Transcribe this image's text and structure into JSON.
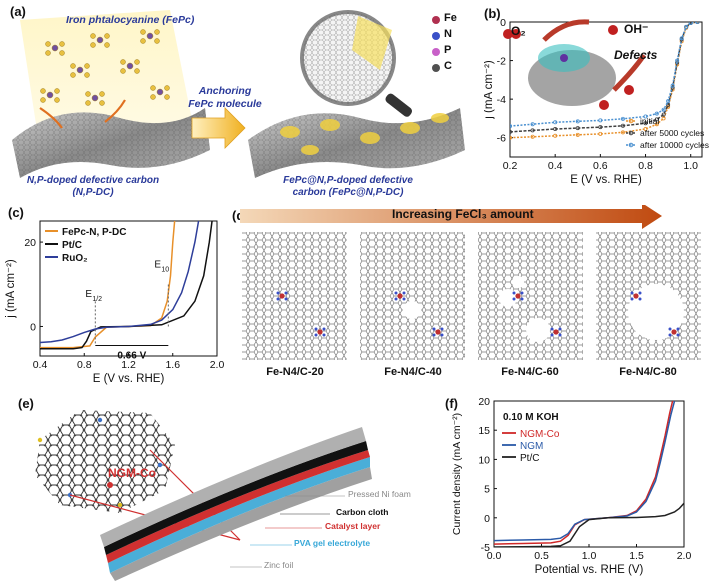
{
  "panel_labels": [
    "(a)",
    "(b)",
    "(c)",
    "(d)",
    "(e)",
    "(f)"
  ],
  "panel_a": {
    "fepc_label": "Iron phtalocyanine (FePc)",
    "anchoring_label": "Anchoring FePc molecule",
    "substrate_label": "N,P-doped defective carbon (N,P-DC)",
    "product_label": "FePc@N,P-doped defective carbon (FePc@N,P-DC)",
    "legend": [
      {
        "element": "Fe",
        "color": "#b03050"
      },
      {
        "element": "N",
        "color": "#3a50c8"
      },
      {
        "element": "P",
        "color": "#c860c8"
      },
      {
        "element": "C",
        "color": "#505050"
      }
    ]
  },
  "panel_b": {
    "inset_labels": {
      "o2": "O₂",
      "oh": "OH⁻",
      "defects": "Defects"
    },
    "chart_data": {
      "type": "line",
      "xlabel": "E (V vs. RHE)",
      "ylabel": "j (mA cm⁻²)",
      "xlim": [
        0.2,
        1.05
      ],
      "ylim": [
        -7,
        0
      ],
      "xticks": [
        0.2,
        0.4,
        0.6,
        0.8,
        1.0
      ],
      "yticks": [
        -6,
        -4,
        -2,
        0
      ],
      "legend_position": "bottom-right",
      "series": [
        {
          "name": "initial",
          "color": "#e8902a",
          "x": [
            0.2,
            0.3,
            0.4,
            0.5,
            0.6,
            0.7,
            0.8,
            0.85,
            0.88,
            0.9,
            0.92,
            0.94,
            0.96,
            0.98,
            1.0,
            1.03
          ],
          "y": [
            -6.0,
            -5.95,
            -5.9,
            -5.85,
            -5.8,
            -5.72,
            -5.55,
            -5.3,
            -5.0,
            -4.4,
            -3.5,
            -2.2,
            -1.0,
            -0.3,
            -0.05,
            0
          ]
        },
        {
          "name": "after 5000 cycles",
          "color": "#404040",
          "x": [
            0.2,
            0.3,
            0.4,
            0.5,
            0.6,
            0.7,
            0.8,
            0.85,
            0.88,
            0.9,
            0.92,
            0.94,
            0.96,
            0.98,
            1.0,
            1.03
          ],
          "y": [
            -5.7,
            -5.62,
            -5.55,
            -5.5,
            -5.45,
            -5.38,
            -5.25,
            -5.05,
            -4.8,
            -4.3,
            -3.4,
            -2.1,
            -0.9,
            -0.25,
            -0.05,
            0
          ]
        },
        {
          "name": "after 10000 cycles",
          "color": "#4a90d0",
          "x": [
            0.2,
            0.3,
            0.4,
            0.5,
            0.6,
            0.7,
            0.8,
            0.85,
            0.88,
            0.9,
            0.92,
            0.94,
            0.96,
            0.98,
            1.0,
            1.03
          ],
          "y": [
            -5.4,
            -5.3,
            -5.2,
            -5.15,
            -5.1,
            -5.02,
            -4.9,
            -4.75,
            -4.55,
            -4.1,
            -3.3,
            -2.0,
            -0.85,
            -0.25,
            -0.05,
            0
          ]
        }
      ]
    }
  },
  "panel_c": {
    "annotations": {
      "e_half": "E1/2",
      "e_10": "E10",
      "delta": "0.66 V"
    },
    "chart_data": {
      "type": "line",
      "xlabel": "E (V vs. RHE)",
      "ylabel": "j (mA cm⁻²)",
      "xlim": [
        0.4,
        2.0
      ],
      "ylim": [
        -7,
        25
      ],
      "xticks": [
        0.4,
        0.8,
        1.2,
        1.6,
        2.0
      ],
      "yticks": [
        0,
        20
      ],
      "legend_position": "top-left",
      "series": [
        {
          "name": "FePc-N, P-DC",
          "color": "#e8902a",
          "x": [
            0.4,
            0.7,
            0.85,
            0.9,
            1.0,
            1.2,
            1.4,
            1.5,
            1.55,
            1.58,
            1.6,
            1.62
          ],
          "y": [
            -5,
            -5,
            -4.6,
            -2.5,
            -0.2,
            0,
            0.2,
            2,
            6,
            12,
            20,
            26
          ]
        },
        {
          "name": "Pt/C",
          "color": "#111111",
          "x": [
            0.4,
            0.7,
            0.78,
            0.82,
            0.86,
            0.95,
            1.2,
            1.5,
            1.7,
            1.8,
            1.88,
            1.93,
            1.96
          ],
          "y": [
            -5.3,
            -5.3,
            -5.0,
            -3.5,
            -1.2,
            -0.1,
            0,
            0.4,
            2.5,
            6,
            12,
            20,
            26
          ]
        },
        {
          "name": "RuO₂",
          "color": "#2e3e9a",
          "x": [
            0.4,
            0.5,
            0.6,
            0.7,
            0.8,
            0.9,
            1.0,
            1.2,
            1.4,
            1.5,
            1.6,
            1.68,
            1.74,
            1.8,
            1.84
          ],
          "y": [
            -3.8,
            -3.6,
            -3.2,
            -2.4,
            -1.4,
            -0.6,
            -0.2,
            0,
            0.5,
            1.5,
            4,
            8,
            13,
            20,
            26
          ]
        }
      ]
    }
  },
  "panel_d": {
    "arrow_label": "Increasing FeCl₃ amount",
    "structures": [
      "Fe-N4/C-20",
      "Fe-N4/C-40",
      "Fe-N4/C-60",
      "Fe-N4/C-80"
    ]
  },
  "panel_e": {
    "catalyst_label": "NGM-Co",
    "layers": [
      {
        "label": "Pressed Ni foam",
        "color": "#9a9a9a"
      },
      {
        "label": "Carbon cloth",
        "color": "#111111"
      },
      {
        "label": "Catalyst layer",
        "color": "#d03030"
      },
      {
        "label": "PVA gel electrolyte",
        "color": "#38a8d8"
      },
      {
        "label": "Zinc foil",
        "color": "#9a9a9a"
      }
    ]
  },
  "panel_f": {
    "condition": "0.10 M KOH",
    "chart_data": {
      "type": "line",
      "xlabel": "Potential vs. RHE (V)",
      "ylabel": "Current density (mA cm⁻²)",
      "xlim": [
        0.0,
        2.0
      ],
      "ylim": [
        -5,
        20
      ],
      "xticks": [
        0.0,
        0.5,
        1.0,
        1.5,
        2.0
      ],
      "yticks": [
        -5,
        0,
        5,
        10,
        15,
        20
      ],
      "legend_position": "top-left",
      "series": [
        {
          "name": "NGM-Co",
          "color": "#d02828",
          "x": [
            0.0,
            0.3,
            0.6,
            0.7,
            0.78,
            0.85,
            0.95,
            1.2,
            1.4,
            1.5,
            1.6,
            1.7,
            1.75,
            1.8,
            1.85,
            1.88
          ],
          "y": [
            -4.5,
            -4.4,
            -4.3,
            -4.0,
            -3.0,
            -1.2,
            -0.3,
            0,
            0.4,
            1.2,
            3.2,
            7,
            10.5,
            14,
            18,
            20
          ]
        },
        {
          "name": "NGM",
          "color": "#2a5aa8",
          "x": [
            0.0,
            0.3,
            0.6,
            0.7,
            0.78,
            0.85,
            0.95,
            1.2,
            1.4,
            1.5,
            1.6,
            1.7,
            1.75,
            1.8,
            1.86,
            1.9
          ],
          "y": [
            -3.9,
            -3.8,
            -3.7,
            -3.5,
            -2.7,
            -1.1,
            -0.3,
            0,
            0.3,
            1.0,
            2.8,
            6.3,
            9.5,
            13,
            17.5,
            20
          ]
        },
        {
          "name": "Pt/C",
          "color": "#222222",
          "x": [
            0.0,
            0.3,
            0.6,
            0.7,
            0.8,
            0.9,
            1.0,
            1.2,
            1.5,
            1.7,
            1.8,
            1.9,
            1.95,
            2.0
          ],
          "y": [
            -5.0,
            -4.95,
            -4.9,
            -4.8,
            -4.0,
            -1.5,
            -0.3,
            0,
            0.05,
            0.2,
            0.4,
            1.0,
            1.6,
            2.5
          ]
        }
      ]
    }
  }
}
